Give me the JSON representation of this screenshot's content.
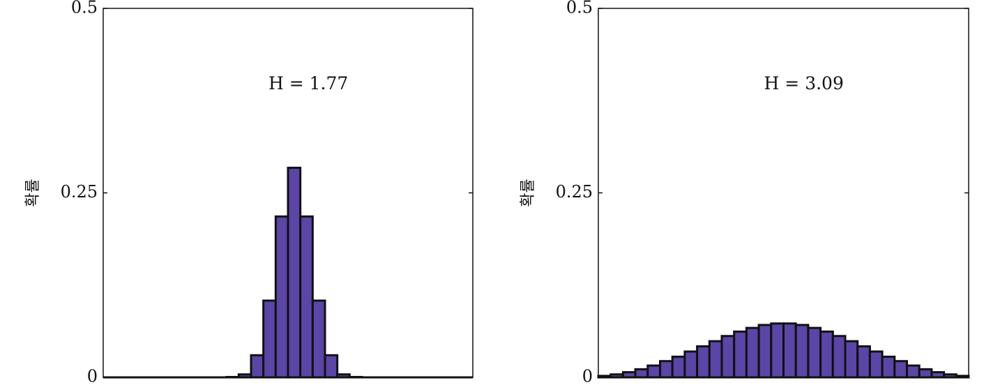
{
  "chart_data": [
    {
      "type": "bar",
      "annotation": "H = 1.77",
      "ylabel": "확률",
      "ylim": [
        0,
        0.5
      ],
      "yticks": [
        {
          "value": 0,
          "label": "0"
        },
        {
          "value": 0.25,
          "label": "0.25"
        },
        {
          "value": 0.5,
          "label": "0.5"
        }
      ],
      "values": [
        0,
        0,
        0,
        0,
        0,
        0,
        0,
        0,
        0,
        0,
        0.0005,
        0.004,
        0.03,
        0.104,
        0.218,
        0.284,
        0.218,
        0.104,
        0.03,
        0.004,
        0.0005,
        0,
        0,
        0,
        0,
        0,
        0,
        0,
        0,
        0
      ],
      "bar_color": "#5b45a6",
      "edge_color": "#111111"
    },
    {
      "type": "bar",
      "annotation": "H = 3.09",
      "ylabel": "확률",
      "ylim": [
        0,
        0.5
      ],
      "yticks": [
        {
          "value": 0,
          "label": "0"
        },
        {
          "value": 0.25,
          "label": "0.25"
        },
        {
          "value": 0.5,
          "label": "0.5"
        }
      ],
      "values": [
        0.002,
        0.004,
        0.007,
        0.011,
        0.016,
        0.022,
        0.028,
        0.035,
        0.042,
        0.049,
        0.056,
        0.062,
        0.067,
        0.071,
        0.073,
        0.073,
        0.071,
        0.067,
        0.062,
        0.056,
        0.049,
        0.042,
        0.035,
        0.028,
        0.022,
        0.016,
        0.011,
        0.007,
        0.004,
        0.002
      ],
      "bar_color": "#5b45a6",
      "edge_color": "#111111"
    }
  ]
}
